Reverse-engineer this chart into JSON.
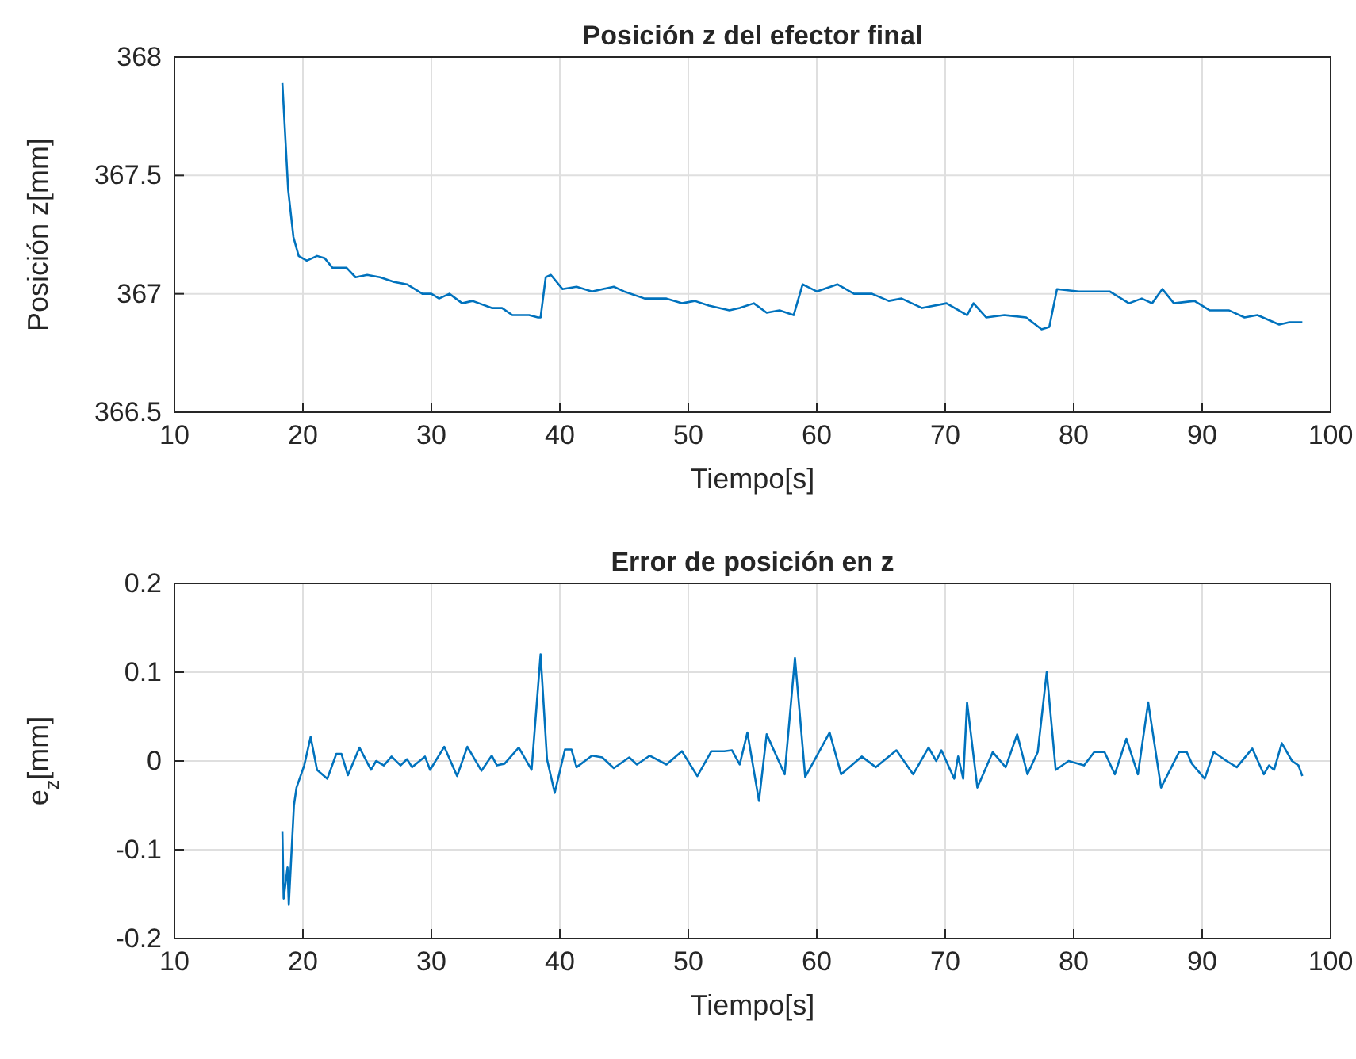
{
  "chart_data": [
    {
      "type": "line",
      "title": "Posición z del efector final",
      "xlabel": "Tiempo[s]",
      "ylabel": "Posición z[mm]",
      "xlim": [
        10,
        100
      ],
      "xticks": [
        10,
        20,
        30,
        40,
        50,
        60,
        70,
        80,
        90,
        100
      ],
      "ylim": [
        366.5,
        368
      ],
      "yticks": [
        366.5,
        367,
        367.5,
        368
      ],
      "grid": true,
      "series": [
        {
          "color": "#0072bd",
          "x": [
            18.4,
            18.85,
            19.26,
            19.67,
            20.3,
            21.1,
            21.7,
            22.3,
            23.4,
            24.1,
            25.0,
            26.0,
            27.1,
            28.1,
            29.3,
            30.0,
            30.6,
            31.4,
            32.4,
            33.2,
            34.7,
            35.5,
            36.3,
            37.6,
            38.3,
            38.5,
            38.9,
            39.3,
            40.2,
            41.3,
            42.5,
            44.2,
            45.0,
            46.6,
            48.3,
            49.5,
            50.5,
            51.6,
            53.2,
            54.0,
            55.1,
            56.1,
            57.1,
            58.2,
            58.9,
            60.0,
            61.6,
            62.9,
            64.3,
            65.6,
            66.6,
            68.2,
            70.1,
            71.7,
            72.2,
            73.2,
            74.6,
            76.3,
            77.5,
            78.1,
            78.7,
            80.4,
            82.8,
            84.3,
            85.3,
            86.1,
            86.9,
            87.8,
            89.4,
            90.6,
            92.1,
            93.3,
            94.3,
            96.0,
            96.8,
            97.8
          ],
          "values": [
            367.89,
            367.44,
            367.24,
            367.16,
            367.14,
            367.16,
            367.15,
            367.11,
            367.11,
            367.07,
            367.08,
            367.07,
            367.05,
            367.04,
            367.0,
            367.0,
            366.98,
            367.0,
            366.96,
            366.97,
            366.94,
            366.94,
            366.91,
            366.91,
            366.9,
            366.9,
            367.07,
            367.08,
            367.02,
            367.03,
            367.01,
            367.03,
            367.01,
            366.98,
            366.98,
            366.96,
            366.97,
            366.95,
            366.93,
            366.94,
            366.96,
            366.92,
            366.93,
            366.91,
            367.04,
            367.01,
            367.04,
            367.0,
            367.0,
            366.97,
            366.98,
            366.94,
            366.96,
            366.91,
            366.96,
            366.9,
            366.91,
            366.9,
            366.85,
            366.86,
            367.02,
            367.01,
            367.01,
            366.96,
            366.98,
            366.96,
            367.02,
            366.96,
            366.97,
            366.93,
            366.93,
            366.9,
            366.91,
            366.87,
            366.88,
            366.88
          ]
        }
      ]
    },
    {
      "type": "line",
      "title": "Error de posición en z",
      "xlabel": "Tiempo[s]",
      "ylabel": "e$_{z}$[mm]",
      "xlim": [
        10,
        100
      ],
      "xticks": [
        10,
        20,
        30,
        40,
        50,
        60,
        70,
        80,
        90,
        100
      ],
      "ylim": [
        -0.2,
        0.2
      ],
      "yticks": [
        -0.2,
        -0.1,
        0,
        0.1,
        0.2
      ],
      "grid": true,
      "series": [
        {
          "color": "#0072bd",
          "x": [
            18.4,
            18.5,
            18.8,
            18.9,
            19.3,
            19.5,
            20.1,
            20.6,
            21.1,
            21.9,
            22.6,
            23.0,
            23.5,
            24.4,
            25.3,
            25.7,
            26.3,
            26.9,
            27.6,
            28.1,
            28.5,
            29.5,
            29.9,
            31.0,
            32.0,
            32.8,
            33.9,
            34.7,
            35.1,
            35.7,
            36.8,
            37.8,
            38.5,
            39.0,
            39.6,
            40.4,
            40.9,
            41.3,
            42.5,
            43.3,
            44.2,
            45.4,
            46.0,
            47.0,
            48.3,
            49.5,
            50.7,
            51.8,
            52.8,
            53.4,
            54.0,
            54.6,
            55.5,
            56.1,
            57.5,
            58.3,
            59.1,
            61.0,
            61.9,
            63.5,
            64.6,
            66.2,
            67.5,
            68.7,
            69.3,
            69.7,
            70.7,
            71.0,
            71.4,
            71.7,
            72.5,
            73.7,
            74.7,
            75.6,
            76.4,
            77.2,
            77.9,
            78.6,
            79.6,
            80.8,
            81.6,
            82.4,
            83.2,
            84.1,
            85.0,
            85.8,
            86.8,
            88.2,
            88.8,
            89.2,
            90.2,
            90.9,
            91.9,
            92.7,
            93.9,
            94.8,
            95.2,
            95.6,
            96.2,
            97.0,
            97.5,
            97.8
          ],
          "values": [
            -0.079,
            -0.155,
            -0.12,
            -0.162,
            -0.05,
            -0.03,
            -0.005,
            0.027,
            -0.01,
            -0.02,
            0.008,
            0.008,
            -0.016,
            0.015,
            -0.01,
            0.0,
            -0.005,
            0.005,
            -0.005,
            0.002,
            -0.007,
            0.005,
            -0.01,
            0.016,
            -0.017,
            0.016,
            -0.011,
            0.006,
            -0.005,
            -0.003,
            0.015,
            -0.01,
            0.12,
            0.002,
            -0.036,
            0.013,
            0.013,
            -0.007,
            0.006,
            0.004,
            -0.008,
            0.004,
            -0.004,
            0.006,
            -0.004,
            0.011,
            -0.017,
            0.011,
            0.011,
            0.012,
            -0.004,
            0.032,
            -0.045,
            0.03,
            -0.015,
            0.116,
            -0.018,
            0.032,
            -0.015,
            0.005,
            -0.007,
            0.012,
            -0.015,
            0.015,
            0.0,
            0.012,
            -0.02,
            0.005,
            -0.02,
            0.066,
            -0.03,
            0.01,
            -0.007,
            0.03,
            -0.015,
            0.01,
            0.1,
            -0.01,
            0.0,
            -0.005,
            0.01,
            0.01,
            -0.015,
            0.025,
            -0.015,
            0.066,
            -0.03,
            0.01,
            0.01,
            -0.003,
            -0.02,
            0.01,
            0.0,
            -0.007,
            0.014,
            -0.015,
            -0.005,
            -0.01,
            0.02,
            0.0,
            -0.005,
            -0.017
          ]
        }
      ]
    }
  ]
}
